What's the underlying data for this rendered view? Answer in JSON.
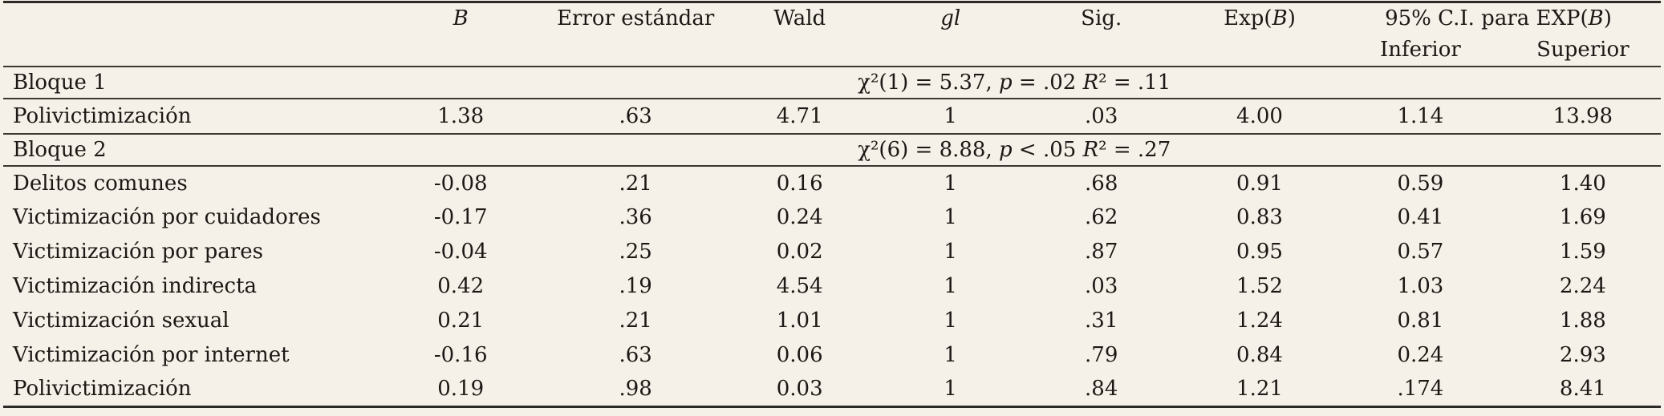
{
  "table": {
    "colors": {
      "background": "#f6f1e8",
      "rule": "#33302c",
      "text": "#1b1815"
    },
    "header": {
      "col_label": "",
      "col_b": [
        {
          "t": "B",
          "i": true
        }
      ],
      "col_se": [
        {
          "t": "Error estándar"
        }
      ],
      "col_wald": [
        {
          "t": "Wald"
        }
      ],
      "col_gl": [
        {
          "t": "gl",
          "i": true
        }
      ],
      "col_sig": [
        {
          "t": "Sig."
        }
      ],
      "col_expb": [
        {
          "t": "Exp("
        },
        {
          "t": "B",
          "i": true
        },
        {
          "t": ")"
        }
      ],
      "col_ci": [
        {
          "t": "95% C.I. para EXP("
        },
        {
          "t": "B",
          "i": true
        },
        {
          "t": ")"
        }
      ],
      "col_ci_lower": "Inferior",
      "col_ci_upper": "Superior"
    },
    "blocks": [
      {
        "label": "Bloque 1",
        "stat": [
          {
            "t": "χ²(1) = 5.37, "
          },
          {
            "t": "p",
            "i": true
          },
          {
            "t": " = .02 "
          },
          {
            "t": "R",
            "i": true
          },
          {
            "t": "² = .11"
          }
        ],
        "rows": [
          {
            "label": "Polivictimización",
            "b": "1.38",
            "se": ".63",
            "wald": "4.71",
            "gl": "1",
            "sig": ".03",
            "exp_b": "4.00",
            "ci_lower": "1.14",
            "ci_upper": "13.98"
          }
        ]
      },
      {
        "label": "Bloque 2",
        "stat": [
          {
            "t": "χ²(6) = 8.88, "
          },
          {
            "t": "p",
            "i": true
          },
          {
            "t": " < .05 "
          },
          {
            "t": "R",
            "i": true
          },
          {
            "t": "² = .27"
          }
        ],
        "rows": [
          {
            "label": "Delitos comunes",
            "b": "-0.08",
            "se": ".21",
            "wald": "0.16",
            "gl": "1",
            "sig": ".68",
            "exp_b": "0.91",
            "ci_lower": "0.59",
            "ci_upper": "1.40"
          },
          {
            "label": "Victimización por cuidadores",
            "b": "-0.17",
            "se": ".36",
            "wald": "0.24",
            "gl": "1",
            "sig": ".62",
            "exp_b": "0.83",
            "ci_lower": "0.41",
            "ci_upper": "1.69"
          },
          {
            "label": "Victimización por pares",
            "b": "-0.04",
            "se": ".25",
            "wald": "0.02",
            "gl": "1",
            "sig": ".87",
            "exp_b": "0.95",
            "ci_lower": "0.57",
            "ci_upper": "1.59"
          },
          {
            "label": "Victimización indirecta",
            "b": "0.42",
            "se": ".19",
            "wald": "4.54",
            "gl": "1",
            "sig": ".03",
            "exp_b": "1.52",
            "ci_lower": "1.03",
            "ci_upper": "2.24"
          },
          {
            "label": "Victimización sexual",
            "b": "0.21",
            "se": ".21",
            "wald": "1.01",
            "gl": "1",
            "sig": ".31",
            "exp_b": "1.24",
            "ci_lower": "0.81",
            "ci_upper": "1.88"
          },
          {
            "label": "Victimización por internet",
            "b": "-0.16",
            "se": ".63",
            "wald": "0.06",
            "gl": "1",
            "sig": ".79",
            "exp_b": "0.84",
            "ci_lower": "0.24",
            "ci_upper": "2.93"
          },
          {
            "label": "Polivictimización",
            "b": "0.19",
            "se": ".98",
            "wald": "0.03",
            "gl": "1",
            "sig": ".84",
            "exp_b": "1.21",
            "ci_lower": ".174",
            "ci_upper": "8.41"
          }
        ]
      }
    ]
  }
}
